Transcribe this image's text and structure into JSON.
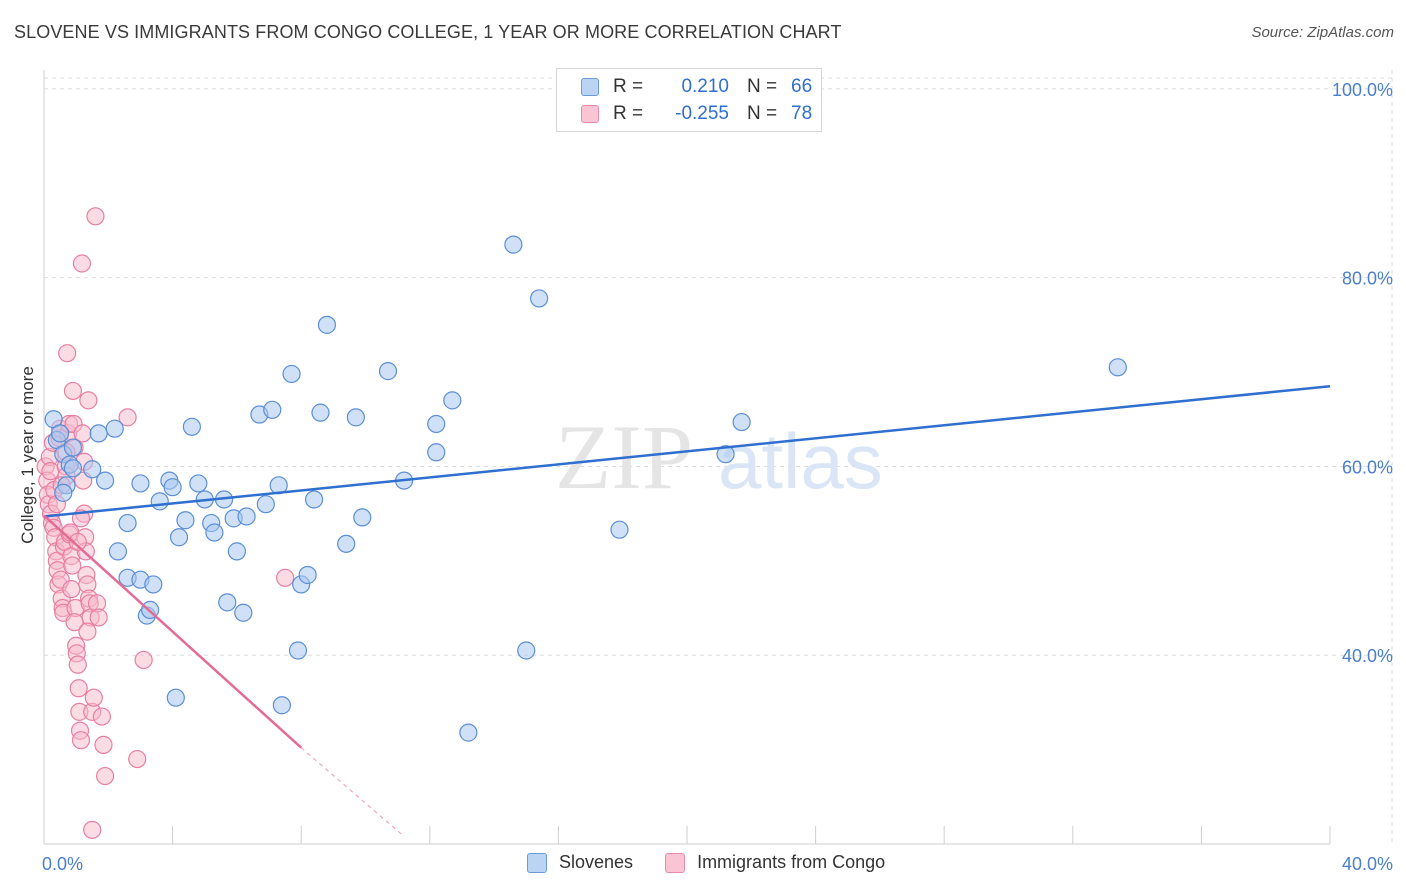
{
  "title": "SLOVENE VS IMMIGRANTS FROM CONGO COLLEGE, 1 YEAR OR MORE CORRELATION CHART",
  "source": "Source: ZipAtlas.com",
  "watermark": {
    "zip": "ZIP",
    "atlas": "atlas"
  },
  "legend": {
    "rows": [
      {
        "r_label": "R =",
        "r_value": "0.210",
        "n_label": "N =",
        "n_value": "66"
      },
      {
        "r_label": "R =",
        "r_value": "-0.255",
        "n_label": "N =",
        "n_value": "78"
      }
    ]
  },
  "bottom_legend": {
    "slovenes": "Slovenes",
    "congo": "Immigrants from Congo"
  },
  "colors": {
    "slovenes_fill": "#a9c8f0",
    "slovenes_stroke": "#5b8fd6",
    "slovenes_line": "#2f6fd0",
    "congo_fill": "#f7b9cc",
    "congo_stroke": "#e77fa2",
    "congo_line": "#e36b95",
    "grid": "#dddddd",
    "tick_text": "#4a7fcb"
  },
  "chart_data": {
    "type": "scatter",
    "title": "SLOVENE VS IMMIGRANTS FROM CONGO COLLEGE, 1 YEAR OR MORE CORRELATION CHART",
    "xlabel": "",
    "ylabel": "College, 1 year or more",
    "xlim": [
      0,
      40
    ],
    "ylim": [
      20,
      102
    ],
    "x_tick_labels": [
      {
        "value": 0,
        "label": "0.0%"
      },
      {
        "value": 40,
        "label": "40.0%"
      }
    ],
    "y_tick_labels": [
      {
        "value": 100,
        "label": "100.0%"
      },
      {
        "value": 80,
        "label": "80.0%"
      },
      {
        "value": 60,
        "label": "60.0%"
      },
      {
        "value": 40,
        "label": "40.0%"
      }
    ],
    "series": [
      {
        "name": "Slovenes",
        "trend": {
          "x": [
            0,
            40
          ],
          "y": [
            54.7,
            68.5
          ],
          "dashed_extension": null
        },
        "points": [
          [
            0.3,
            65.0
          ],
          [
            0.4,
            62.8
          ],
          [
            0.5,
            63.5
          ],
          [
            0.6,
            61.3
          ],
          [
            0.8,
            60.2
          ],
          [
            0.9,
            62.0
          ],
          [
            0.9,
            59.8
          ],
          [
            0.7,
            58.0
          ],
          [
            1.5,
            59.7
          ],
          [
            1.7,
            63.5
          ],
          [
            2.2,
            64.0
          ],
          [
            1.9,
            58.5
          ],
          [
            2.3,
            51.0
          ],
          [
            2.6,
            48.2
          ],
          [
            2.6,
            54.0
          ],
          [
            3.0,
            48.0
          ],
          [
            3.0,
            58.2
          ],
          [
            3.2,
            44.2
          ],
          [
            3.3,
            44.8
          ],
          [
            3.4,
            47.5
          ],
          [
            3.6,
            56.3
          ],
          [
            3.9,
            58.5
          ],
          [
            4.0,
            57.8
          ],
          [
            4.1,
            35.5
          ],
          [
            4.2,
            52.5
          ],
          [
            4.4,
            54.3
          ],
          [
            4.6,
            64.2
          ],
          [
            4.8,
            58.2
          ],
          [
            5.0,
            56.5
          ],
          [
            5.2,
            54.0
          ],
          [
            5.3,
            53.0
          ],
          [
            5.6,
            56.5
          ],
          [
            5.7,
            45.6
          ],
          [
            5.9,
            54.5
          ],
          [
            6.0,
            51.0
          ],
          [
            6.2,
            44.5
          ],
          [
            6.3,
            54.7
          ],
          [
            6.7,
            65.5
          ],
          [
            6.9,
            56.0
          ],
          [
            7.1,
            66.0
          ],
          [
            7.3,
            58.0
          ],
          [
            7.4,
            34.7
          ],
          [
            7.7,
            69.8
          ],
          [
            7.9,
            40.5
          ],
          [
            8.0,
            47.5
          ],
          [
            8.2,
            48.5
          ],
          [
            8.4,
            56.5
          ],
          [
            8.6,
            65.7
          ],
          [
            8.8,
            75.0
          ],
          [
            9.4,
            51.8
          ],
          [
            9.7,
            65.2
          ],
          [
            9.9,
            54.6
          ],
          [
            10.7,
            70.1
          ],
          [
            11.2,
            58.5
          ],
          [
            12.2,
            64.5
          ],
          [
            12.2,
            61.5
          ],
          [
            12.7,
            67.0
          ],
          [
            13.2,
            31.8
          ],
          [
            14.6,
            83.5
          ],
          [
            15.0,
            40.5
          ],
          [
            15.4,
            77.8
          ],
          [
            17.9,
            53.3
          ],
          [
            21.2,
            61.3
          ],
          [
            21.7,
            64.7
          ],
          [
            33.4,
            70.5
          ],
          [
            0.6,
            57.2
          ]
        ]
      },
      {
        "name": "Immigrants from Congo",
        "trend": {
          "x": [
            0,
            8.0
          ],
          "y": [
            54.8,
            30.2
          ],
          "dashed_extension": {
            "x": [
              8.0,
              11.2
            ],
            "y": [
              30.2,
              20.8
            ]
          }
        },
        "points": [
          [
            0.05,
            60.0
          ],
          [
            0.1,
            58.5
          ],
          [
            0.12,
            57.0
          ],
          [
            0.15,
            56.0
          ],
          [
            0.18,
            61.0
          ],
          [
            0.2,
            59.5
          ],
          [
            0.22,
            55.0
          ],
          [
            0.25,
            54.0
          ],
          [
            0.28,
            62.5
          ],
          [
            0.3,
            53.5
          ],
          [
            0.32,
            57.5
          ],
          [
            0.35,
            52.5
          ],
          [
            0.38,
            51.0
          ],
          [
            0.4,
            50.0
          ],
          [
            0.42,
            49.0
          ],
          [
            0.45,
            47.5
          ],
          [
            0.48,
            63.0
          ],
          [
            0.5,
            64.0
          ],
          [
            0.52,
            48.0
          ],
          [
            0.55,
            46.0
          ],
          [
            0.58,
            45.0
          ],
          [
            0.6,
            44.5
          ],
          [
            0.62,
            51.5
          ],
          [
            0.65,
            52.0
          ],
          [
            0.68,
            60.0
          ],
          [
            0.7,
            59.0
          ],
          [
            0.72,
            72.0
          ],
          [
            0.75,
            63.5
          ],
          [
            0.78,
            64.5
          ],
          [
            0.8,
            52.8
          ],
          [
            0.82,
            53.0
          ],
          [
            0.85,
            50.5
          ],
          [
            0.88,
            49.5
          ],
          [
            0.9,
            68.0
          ],
          [
            0.92,
            64.5
          ],
          [
            0.95,
            62.0
          ],
          [
            0.98,
            45.0
          ],
          [
            1.0,
            41.0
          ],
          [
            1.02,
            40.2
          ],
          [
            1.05,
            39.0
          ],
          [
            1.08,
            36.5
          ],
          [
            1.1,
            34.0
          ],
          [
            1.12,
            32.0
          ],
          [
            1.15,
            31.0
          ],
          [
            1.18,
            81.5
          ],
          [
            1.2,
            63.5
          ],
          [
            1.22,
            58.5
          ],
          [
            1.25,
            55.0
          ],
          [
            1.28,
            52.5
          ],
          [
            1.3,
            51.0
          ],
          [
            1.32,
            48.5
          ],
          [
            1.35,
            47.5
          ],
          [
            1.38,
            67.0
          ],
          [
            1.4,
            46.0
          ],
          [
            1.42,
            45.5
          ],
          [
            1.45,
            44.0
          ],
          [
            1.5,
            34.0
          ],
          [
            1.55,
            35.5
          ],
          [
            1.6,
            86.5
          ],
          [
            1.65,
            45.5
          ],
          [
            1.7,
            44.0
          ],
          [
            1.8,
            33.5
          ],
          [
            1.85,
            30.5
          ],
          [
            1.9,
            27.2
          ],
          [
            2.6,
            65.2
          ],
          [
            2.9,
            29.0
          ],
          [
            3.1,
            39.5
          ],
          [
            7.5,
            48.2
          ],
          [
            1.5,
            21.5
          ],
          [
            0.4,
            56.0
          ],
          [
            0.55,
            58.0
          ],
          [
            0.7,
            61.5
          ],
          [
            0.85,
            47.0
          ],
          [
            0.95,
            43.5
          ],
          [
            1.05,
            52.0
          ],
          [
            1.15,
            54.5
          ],
          [
            1.25,
            60.5
          ],
          [
            1.35,
            42.5
          ]
        ]
      }
    ]
  }
}
